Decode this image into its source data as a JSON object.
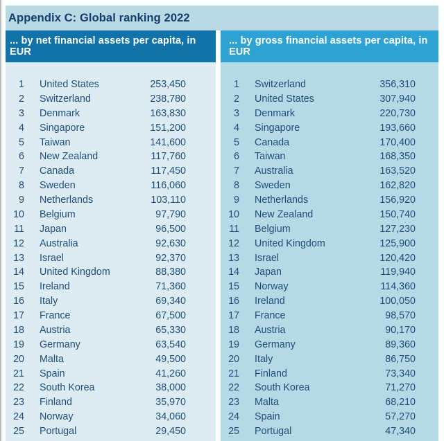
{
  "title": "Appendix C: Global ranking 2022",
  "colors": {
    "title_band_bg": "#b9d9e5",
    "title_text": "#123c6d",
    "header_net_bg": "#1273a9",
    "header_gross_bg": "#2fa2d4",
    "header_text": "#ffffff",
    "body_net_bg": "#dcecf2",
    "body_gross_bg": "#b6d9e6",
    "row_text": "#204e7c"
  },
  "tables": [
    {
      "id": "net",
      "header": "... by net financial assets per capita, in EUR",
      "rows": [
        {
          "rank": "1",
          "country": "United States",
          "value": "253,450"
        },
        {
          "rank": "2",
          "country": "Switzerland",
          "value": "238,780"
        },
        {
          "rank": "3",
          "country": "Denmark",
          "value": "163,830"
        },
        {
          "rank": "4",
          "country": "Singapore",
          "value": "151,200"
        },
        {
          "rank": "5",
          "country": "Taiwan",
          "value": "141,600"
        },
        {
          "rank": "6",
          "country": "New Zealand",
          "value": "117,760"
        },
        {
          "rank": "7",
          "country": "Canada",
          "value": "117,450"
        },
        {
          "rank": "8",
          "country": "Sweden",
          "value": "116,060"
        },
        {
          "rank": "9",
          "country": "Netherlands",
          "value": "103,110"
        },
        {
          "rank": "10",
          "country": "Belgium",
          "value": "97,790"
        },
        {
          "rank": "11",
          "country": "Japan",
          "value": "96,500"
        },
        {
          "rank": "12",
          "country": "Australia",
          "value": "92,630"
        },
        {
          "rank": "13",
          "country": "Israel",
          "value": "92,370"
        },
        {
          "rank": "14",
          "country": "United Kingdom",
          "value": "88,380"
        },
        {
          "rank": "15",
          "country": "Ireland",
          "value": "71,360"
        },
        {
          "rank": "16",
          "country": "Italy",
          "value": "69,340"
        },
        {
          "rank": "17",
          "country": "France",
          "value": "67,500"
        },
        {
          "rank": "18",
          "country": "Austria",
          "value": "65,330"
        },
        {
          "rank": "19",
          "country": "Germany",
          "value": "63,540"
        },
        {
          "rank": "20",
          "country": "Malta",
          "value": "49,500"
        },
        {
          "rank": "21",
          "country": "Spain",
          "value": "41,260"
        },
        {
          "rank": "22",
          "country": "South Korea",
          "value": "38,000"
        },
        {
          "rank": "23",
          "country": "Finland",
          "value": "35,970"
        },
        {
          "rank": "24",
          "country": "Norway",
          "value": "34,060"
        },
        {
          "rank": "25",
          "country": "Portugal",
          "value": "29,450"
        }
      ]
    },
    {
      "id": "gross",
      "header": "... by gross financial assets per capita, in EUR",
      "rows": [
        {
          "rank": "1",
          "country": "Switzerland",
          "value": "356,310"
        },
        {
          "rank": "2",
          "country": "United States",
          "value": "307,940"
        },
        {
          "rank": "3",
          "country": "Denmark",
          "value": "220,730"
        },
        {
          "rank": "4",
          "country": "Singapore",
          "value": "193,660"
        },
        {
          "rank": "5",
          "country": "Canada",
          "value": "170,400"
        },
        {
          "rank": "6",
          "country": "Taiwan",
          "value": "168,350"
        },
        {
          "rank": "7",
          "country": "Australia",
          "value": "163,520"
        },
        {
          "rank": "8",
          "country": "Sweden",
          "value": "162,820"
        },
        {
          "rank": "9",
          "country": "Netherlands",
          "value": "156,920"
        },
        {
          "rank": "10",
          "country": "New Zealand",
          "value": "150,740"
        },
        {
          "rank": "11",
          "country": "Belgium",
          "value": "127,230"
        },
        {
          "rank": "12",
          "country": "United Kingdom",
          "value": "125,900"
        },
        {
          "rank": "13",
          "country": "Israel",
          "value": "120,420"
        },
        {
          "rank": "14",
          "country": "Japan",
          "value": "119,940"
        },
        {
          "rank": "15",
          "country": "Norway",
          "value": "114,360"
        },
        {
          "rank": "16",
          "country": "Ireland",
          "value": "100,050"
        },
        {
          "rank": "17",
          "country": "France",
          "value": "98,570"
        },
        {
          "rank": "18",
          "country": "Austria",
          "value": "90,170"
        },
        {
          "rank": "19",
          "country": "Germany",
          "value": "89,360"
        },
        {
          "rank": "20",
          "country": "Italy",
          "value": "86,750"
        },
        {
          "rank": "21",
          "country": "Finland",
          "value": "73,340"
        },
        {
          "rank": "22",
          "country": "South Korea",
          "value": "71,270"
        },
        {
          "rank": "23",
          "country": "Malta",
          "value": "68,210"
        },
        {
          "rank": "24",
          "country": "Spain",
          "value": "57,270"
        },
        {
          "rank": "25",
          "country": "Portugal",
          "value": "47,340"
        }
      ]
    }
  ]
}
